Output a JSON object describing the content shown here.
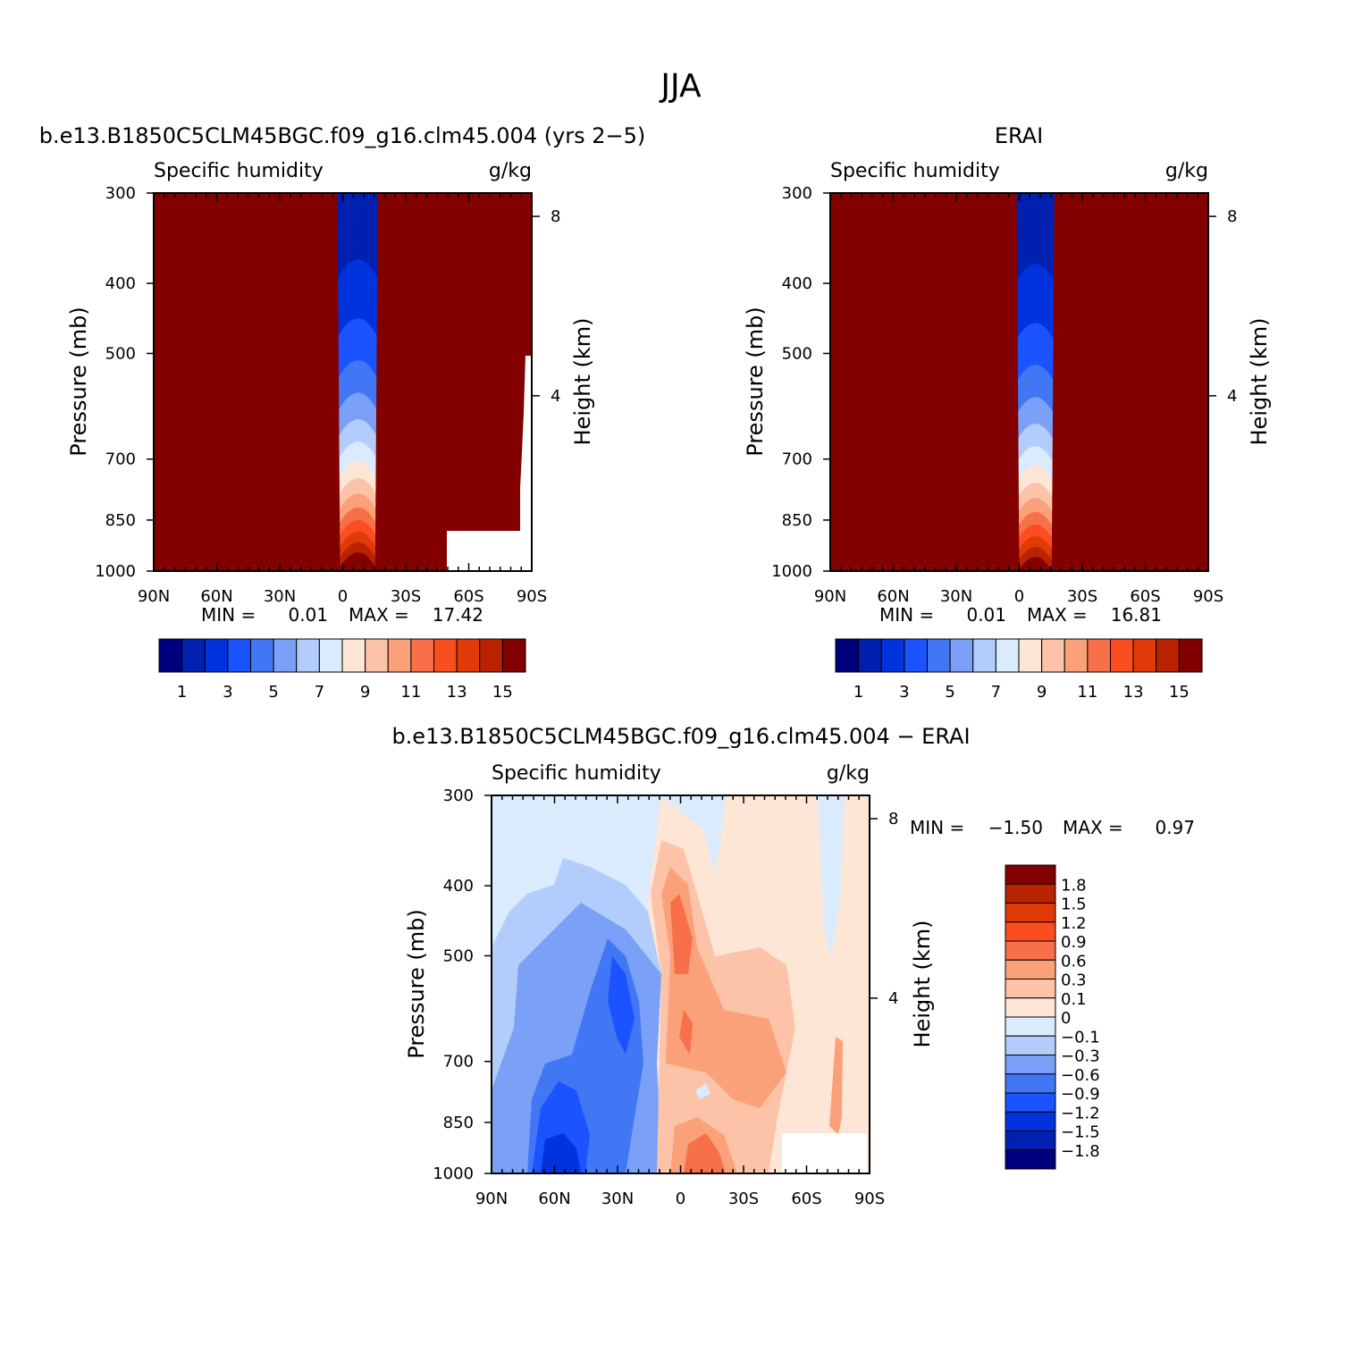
{
  "title": "JJA",
  "chart_data": [
    {
      "type": "heatmap",
      "title": "b.e13.B1850C5CLM45BGC.f09_g16.clm45.004 (yrs 2-5)",
      "subtitle_left": "Specific humidity",
      "subtitle_right": "g/kg",
      "ylabel": "Pressure (mb)",
      "ylabel_right": "Height (km)",
      "x_ticks": [
        "90N",
        "60N",
        "30N",
        "0",
        "30S",
        "60S",
        "90S"
      ],
      "y_ticks": [
        "300",
        "400",
        "500",
        "700",
        "850",
        "1000"
      ],
      "y_right_ticks": [
        "8",
        "4"
      ],
      "min_label": "MIN =",
      "min_value": "0.01",
      "max_label": "MAX =",
      "max_value": "17.42",
      "peak_value": 17.42,
      "colorbar_labels": [
        "1",
        "3",
        "5",
        "7",
        "9",
        "11",
        "13",
        "15"
      ],
      "colors": [
        "#00007f",
        "#0020b0",
        "#0033dd",
        "#1a53ff",
        "#4177f5",
        "#7aa0f7",
        "#b2ccfb",
        "#d9ebfc",
        "#fee6d6",
        "#fcc3a8",
        "#fba17a",
        "#f77049",
        "#fb4d20",
        "#e03a08",
        "#ba2300",
        "#830000"
      ]
    },
    {
      "type": "heatmap",
      "title": "ERAI",
      "subtitle_left": "Specific humidity",
      "subtitle_right": "g/kg",
      "ylabel": "Pressure (mb)",
      "ylabel_right": "Height (km)",
      "x_ticks": [
        "90N",
        "60N",
        "30N",
        "0",
        "30S",
        "60S",
        "90S"
      ],
      "y_ticks": [
        "300",
        "400",
        "500",
        "700",
        "850",
        "1000"
      ],
      "y_right_ticks": [
        "8",
        "4"
      ],
      "min_label": "MIN =",
      "min_value": "0.01",
      "max_label": "MAX =",
      "max_value": "16.81",
      "peak_value": 16.81,
      "colorbar_labels": [
        "1",
        "3",
        "5",
        "7",
        "9",
        "11",
        "13",
        "15"
      ],
      "colors": [
        "#00007f",
        "#0020b0",
        "#0033dd",
        "#1a53ff",
        "#4177f5",
        "#7aa0f7",
        "#b2ccfb",
        "#d9ebfc",
        "#fee6d6",
        "#fcc3a8",
        "#fba17a",
        "#f77049",
        "#fb4d20",
        "#e03a08",
        "#ba2300",
        "#830000"
      ]
    },
    {
      "type": "heatmap",
      "title": "b.e13.B1850C5CLM45BGC.f09_g16.clm45.004 - ERAI",
      "subtitle_left": "Specific humidity",
      "subtitle_right": "g/kg",
      "ylabel": "Pressure (mb)",
      "ylabel_right": "Height (km)",
      "x_ticks": [
        "90N",
        "60N",
        "30N",
        "0",
        "30S",
        "60S",
        "90S"
      ],
      "y_ticks": [
        "300",
        "400",
        "500",
        "700",
        "850",
        "1000"
      ],
      "y_right_ticks": [
        "8",
        "4"
      ],
      "min_label": "MIN =",
      "min_value": "-1.50",
      "max_label": "MAX =",
      "max_value": "0.97",
      "colorbar_labels": [
        "1.8",
        "1.5",
        "1.2",
        "0.9",
        "0.6",
        "0.3",
        "0.1",
        "0",
        "-0.1",
        "-0.3",
        "-0.6",
        "-0.9",
        "-1.2",
        "-1.5",
        "-1.8"
      ],
      "colors": [
        "#830000",
        "#ba2300",
        "#e03a08",
        "#fb4d20",
        "#f77049",
        "#fba17a",
        "#fcc3a8",
        "#fee6d6",
        "#d9ebfc",
        "#b2ccfb",
        "#7aa0f7",
        "#4177f5",
        "#1a53ff",
        "#0033dd",
        "#0020b0",
        "#00007f"
      ]
    }
  ]
}
